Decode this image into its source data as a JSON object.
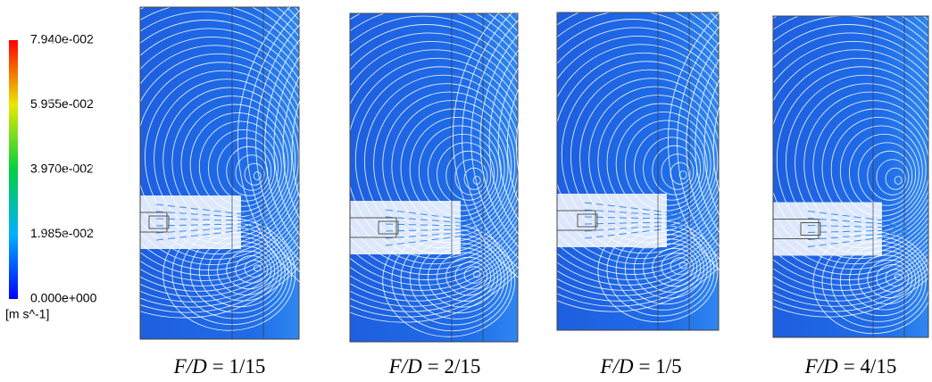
{
  "colorbar": {
    "tick_labels": [
      "7.940e-002",
      "5.955e-002",
      "3.970e-002",
      "1.985e-002",
      "0.000e+000"
    ],
    "unit": "[m s^-1]"
  },
  "panels": [
    {
      "symbol": "F/D",
      "value": "= 1/15"
    },
    {
      "symbol": "F/D",
      "value": "= 2/15"
    },
    {
      "symbol": "F/D",
      "value": "= 1/5"
    },
    {
      "symbol": "F/D",
      "value": "= 4/15"
    }
  ]
}
